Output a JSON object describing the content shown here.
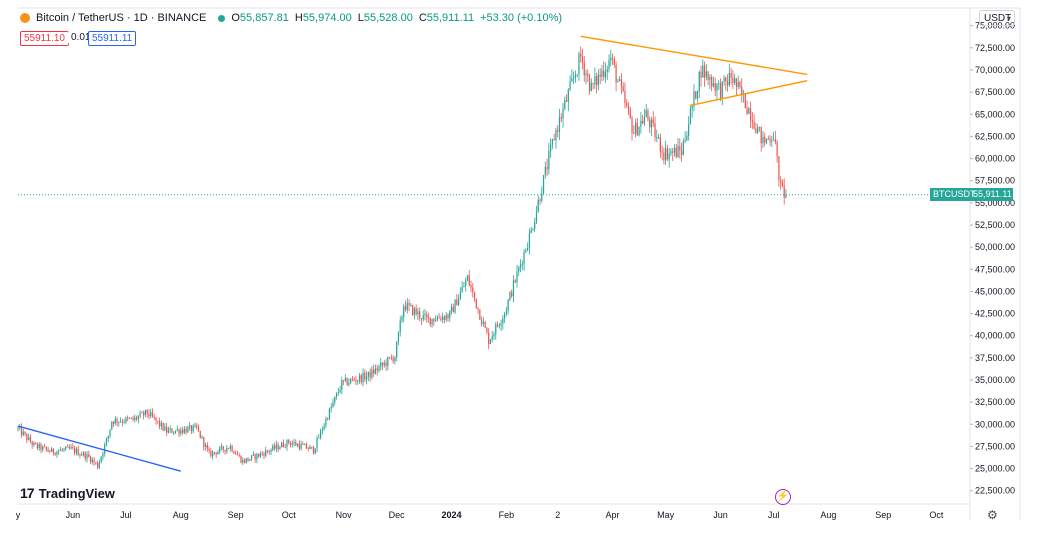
{
  "header": {
    "symbol": "Bitcoin / TetherUS · 1D · BINANCE",
    "open_label": "O",
    "open": "55,857.81",
    "high_label": "H",
    "high": "55,974.00",
    "low_label": "L",
    "low": "55,528.00",
    "close_label": "C",
    "close": "55,911.11",
    "change": "+53.30 (+0.10%)",
    "sell_price": "55911.10",
    "spread": "0.01",
    "buy_price": "55911.11"
  },
  "currency": "USDT",
  "watermark": "TradingView",
  "last_price_label": {
    "ticker": "BTCUSDT",
    "value": "55,911.11"
  },
  "colors": {
    "up": "#26a69a",
    "down": "#ef5350",
    "triangle": "#ff9800",
    "trendline": "#2962ff",
    "last_line": "#26a69a"
  },
  "icons": {
    "logo": "bitcoin-logo-icon",
    "status": "market-open-dot-icon",
    "bolt": "lightning-icon",
    "settings": "gear-icon",
    "chevron": "chevron-down-icon"
  },
  "chart_data": {
    "type": "candlestick",
    "y_axis": {
      "min": 21000,
      "max": 77000,
      "scale": "linear",
      "ticks": [
        "75,000.00",
        "72,500.00",
        "70,000.00",
        "67,500.00",
        "65,000.00",
        "62,500.00",
        "60,000.00",
        "57,500.00",
        "55,000.00",
        "52,500.00",
        "50,000.00",
        "47,500.00",
        "45,000.00",
        "42,500.00",
        "40,000.00",
        "37,500.00",
        "35,000.00",
        "32,500.00",
        "30,000.00",
        "27,500.00",
        "25,000.00",
        "22,500.00"
      ],
      "tick_values": [
        75000,
        72500,
        70000,
        67500,
        65000,
        62500,
        60000,
        57500,
        55000,
        52500,
        50000,
        47500,
        45000,
        42500,
        40000,
        37500,
        35000,
        32500,
        30000,
        27500,
        25000,
        22500
      ]
    },
    "x_axis": {
      "start": "2023-05-01",
      "end": "2024-10-20",
      "ticks": [
        {
          "label": "y",
          "date": "2023-05-01"
        },
        {
          "label": "Jun",
          "date": "2023-06-01"
        },
        {
          "label": "Jul",
          "date": "2023-07-01"
        },
        {
          "label": "Aug",
          "date": "2023-08-01"
        },
        {
          "label": "Sep",
          "date": "2023-09-01"
        },
        {
          "label": "Oct",
          "date": "2023-10-01"
        },
        {
          "label": "Nov",
          "date": "2023-11-01"
        },
        {
          "label": "Dec",
          "date": "2023-12-01"
        },
        {
          "label": "2024",
          "date": "2024-01-01"
        },
        {
          "label": "Feb",
          "date": "2024-02-01"
        },
        {
          "label": "2",
          "date": "2024-03-01"
        },
        {
          "label": "Apr",
          "date": "2024-04-01"
        },
        {
          "label": "May",
          "date": "2024-05-01"
        },
        {
          "label": "Jun",
          "date": "2024-06-01"
        },
        {
          "label": "Jul",
          "date": "2024-07-01"
        },
        {
          "label": "Aug",
          "date": "2024-08-01"
        },
        {
          "label": "Sep",
          "date": "2024-09-01"
        },
        {
          "label": "Oct",
          "date": "2024-10-01"
        }
      ]
    },
    "last_price": 55911.11,
    "key_closes": [
      {
        "date": "2023-05-01",
        "close": 29500
      },
      {
        "date": "2023-05-10",
        "close": 27600
      },
      {
        "date": "2023-05-20",
        "close": 26900
      },
      {
        "date": "2023-05-31",
        "close": 27200
      },
      {
        "date": "2023-06-10",
        "close": 26300
      },
      {
        "date": "2023-06-15",
        "close": 25300
      },
      {
        "date": "2023-06-21",
        "close": 28700
      },
      {
        "date": "2023-06-23",
        "close": 30400
      },
      {
        "date": "2023-07-05",
        "close": 30500
      },
      {
        "date": "2023-07-13",
        "close": 31300
      },
      {
        "date": "2023-07-24",
        "close": 29200
      },
      {
        "date": "2023-08-10",
        "close": 29500
      },
      {
        "date": "2023-08-17",
        "close": 26600
      },
      {
        "date": "2023-08-29",
        "close": 27500
      },
      {
        "date": "2023-09-05",
        "close": 25800
      },
      {
        "date": "2023-09-15",
        "close": 26600
      },
      {
        "date": "2023-10-01",
        "close": 28000
      },
      {
        "date": "2023-10-15",
        "close": 27100
      },
      {
        "date": "2023-10-23",
        "close": 31000
      },
      {
        "date": "2023-10-31",
        "close": 34600
      },
      {
        "date": "2023-11-15",
        "close": 35500
      },
      {
        "date": "2023-11-30",
        "close": 37700
      },
      {
        "date": "2023-12-05",
        "close": 43500
      },
      {
        "date": "2023-12-18",
        "close": 41800
      },
      {
        "date": "2023-12-31",
        "close": 42300
      },
      {
        "date": "2024-01-10",
        "close": 46500
      },
      {
        "date": "2024-01-22",
        "close": 39500
      },
      {
        "date": "2024-01-31",
        "close": 42600
      },
      {
        "date": "2024-02-15",
        "close": 51800
      },
      {
        "date": "2024-02-28",
        "close": 62500
      },
      {
        "date": "2024-03-05",
        "close": 66000
      },
      {
        "date": "2024-03-14",
        "close": 71500
      },
      {
        "date": "2024-03-20",
        "close": 67900
      },
      {
        "date": "2024-03-31",
        "close": 71300
      },
      {
        "date": "2024-04-13",
        "close": 63000
      },
      {
        "date": "2024-04-20",
        "close": 64900
      },
      {
        "date": "2024-04-30",
        "close": 60600
      },
      {
        "date": "2024-05-10",
        "close": 60800
      },
      {
        "date": "2024-05-21",
        "close": 70100
      },
      {
        "date": "2024-06-01",
        "close": 67700
      },
      {
        "date": "2024-06-07",
        "close": 69300
      },
      {
        "date": "2024-06-18",
        "close": 65200
      },
      {
        "date": "2024-06-25",
        "close": 61800
      },
      {
        "date": "2024-07-01",
        "close": 62800
      },
      {
        "date": "2024-07-05",
        "close": 56600
      },
      {
        "date": "2024-07-08",
        "close": 55911
      }
    ],
    "drawings": [
      {
        "name": "triangle-upper-line",
        "color": "#ff9800",
        "from": {
          "date": "2024-03-14",
          "price": 73800
        },
        "to": {
          "date": "2024-07-20",
          "price": 69500
        }
      },
      {
        "name": "triangle-lower-line",
        "color": "#ff9800",
        "from": {
          "date": "2024-05-15",
          "price": 66000
        },
        "to": {
          "date": "2024-07-20",
          "price": 68800
        }
      },
      {
        "name": "blue-trendline",
        "color": "#2962ff",
        "from": {
          "date": "2023-05-01",
          "price": 29800
        },
        "to": {
          "date": "2023-08-01",
          "price": 24700
        }
      }
    ]
  }
}
